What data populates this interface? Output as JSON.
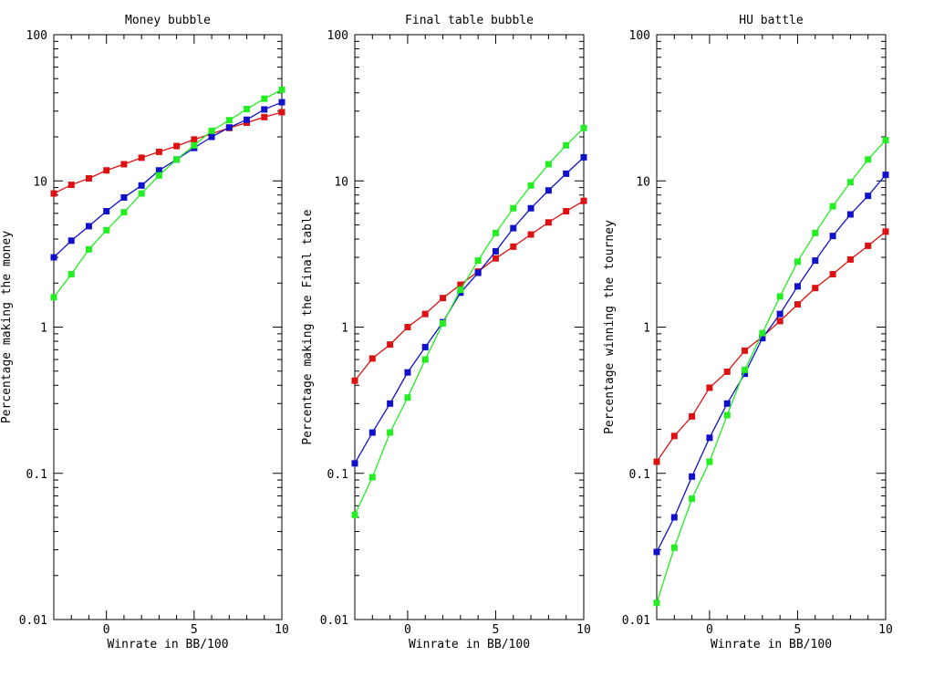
{
  "chart_data": [
    {
      "type": "line",
      "title": "Money bubble",
      "xlabel": "Winrate in BB/100",
      "ylabel": "Percentage making the money",
      "xlim": [
        -3,
        10
      ],
      "ylim": [
        0.01,
        100
      ],
      "yscale": "log",
      "xticks": [
        "0",
        "5",
        "10"
      ],
      "yticks": [
        "0.01",
        "0.1",
        "1",
        "10",
        "100"
      ],
      "grid": false,
      "x": [
        -3,
        -2,
        -1,
        0,
        1,
        2,
        3,
        4,
        5,
        6,
        7,
        8,
        9,
        10
      ],
      "series": [
        {
          "color": "#dd1111",
          "values": [
            8.2,
            9.4,
            10.4,
            11.8,
            13.0,
            14.4,
            15.8,
            17.3,
            19.2,
            21.0,
            23.0,
            25.0,
            27.3,
            29.5
          ]
        },
        {
          "color": "#1111cc",
          "values": [
            3.0,
            3.9,
            4.9,
            6.2,
            7.7,
            9.3,
            11.8,
            14.0,
            16.8,
            20.0,
            23.2,
            26.2,
            30.8,
            34.5
          ]
        },
        {
          "color": "#22ee22",
          "values": [
            1.6,
            2.3,
            3.4,
            4.6,
            6.1,
            8.2,
            10.9,
            14.0,
            17.5,
            22.0,
            26.0,
            31.0,
            36.5,
            42.0
          ]
        }
      ]
    },
    {
      "type": "line",
      "title": "Final table bubble",
      "xlabel": "Winrate in BB/100",
      "ylabel": "Percentage making the Final table",
      "xlim": [
        -3,
        10
      ],
      "ylim": [
        0.01,
        100
      ],
      "yscale": "log",
      "xticks": [
        "0",
        "5",
        "10"
      ],
      "yticks": [
        "0.01",
        "0.1",
        "1",
        "10",
        "100"
      ],
      "grid": false,
      "x": [
        -3,
        -2,
        -1,
        0,
        1,
        2,
        3,
        4,
        5,
        6,
        7,
        8,
        9,
        10
      ],
      "series": [
        {
          "color": "#dd1111",
          "values": [
            0.43,
            0.61,
            0.76,
            1.0,
            1.23,
            1.58,
            1.95,
            2.4,
            2.95,
            3.55,
            4.3,
            5.2,
            6.2,
            7.3
          ]
        },
        {
          "color": "#1111cc",
          "values": [
            0.117,
            0.19,
            0.3,
            0.49,
            0.73,
            1.08,
            1.72,
            2.35,
            3.3,
            4.75,
            6.5,
            8.6,
            11.2,
            14.5
          ]
        },
        {
          "color": "#22ee22",
          "values": [
            0.052,
            0.094,
            0.19,
            0.33,
            0.6,
            1.06,
            1.8,
            2.85,
            4.4,
            6.5,
            9.3,
            13.0,
            17.5,
            23.0
          ]
        }
      ]
    },
    {
      "type": "line",
      "title": "HU battle",
      "xlabel": "Winrate in BB/100",
      "ylabel": "Percentage winning the tourney",
      "xlim": [
        -3,
        10
      ],
      "ylim": [
        0.01,
        100
      ],
      "yscale": "log",
      "xticks": [
        "0",
        "5",
        "10"
      ],
      "yticks": [
        "0.01",
        "0.1",
        "1",
        "10",
        "100"
      ],
      "grid": false,
      "x": [
        -3,
        -2,
        -1,
        0,
        1,
        2,
        3,
        4,
        5,
        6,
        7,
        8,
        9,
        10
      ],
      "series": [
        {
          "color": "#dd1111",
          "values": [
            0.12,
            0.18,
            0.245,
            0.385,
            0.495,
            0.69,
            0.86,
            1.1,
            1.43,
            1.85,
            2.3,
            2.9,
            3.6,
            4.5
          ]
        },
        {
          "color": "#1111cc",
          "values": [
            0.029,
            0.05,
            0.095,
            0.175,
            0.3,
            0.48,
            0.84,
            1.23,
            1.9,
            2.85,
            4.2,
            5.9,
            7.9,
            11.0
          ]
        },
        {
          "color": "#22ee22",
          "values": [
            0.013,
            0.031,
            0.067,
            0.12,
            0.25,
            0.51,
            0.91,
            1.62,
            2.8,
            4.4,
            6.7,
            9.8,
            14.0,
            19.0
          ]
        }
      ]
    }
  ]
}
